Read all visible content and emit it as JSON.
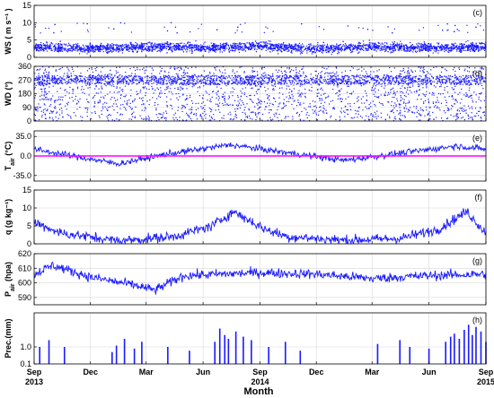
{
  "chart_data": {
    "type": "multi-panel time series",
    "time_range": [
      "2013-09",
      "2015-09"
    ],
    "xlabel": "Month",
    "x_ticks": [
      {
        "month": "Sep",
        "year": "2013",
        "date": "2013-09-01"
      },
      {
        "month": "Dec",
        "year": "",
        "date": "2013-12-01"
      },
      {
        "month": "Mar",
        "year": "",
        "date": "2014-03-01"
      },
      {
        "month": "Jun",
        "year": "",
        "date": "2014-06-01"
      },
      {
        "month": "Sep",
        "year": "2014",
        "date": "2014-09-01"
      },
      {
        "month": "Dec",
        "year": "",
        "date": "2014-12-01"
      },
      {
        "month": "Mar",
        "year": "",
        "date": "2015-03-01"
      },
      {
        "month": "Jun",
        "year": "",
        "date": "2015-06-01"
      },
      {
        "month": "Sep",
        "year": "2015",
        "date": "2015-09-01"
      }
    ],
    "series_color": "#1a1aff",
    "reference_line_color": "#ff00ff",
    "grid": true,
    "panels": [
      {
        "id": "ws",
        "panel_label": "(c)",
        "ylabel": "WS ( m s⁻¹ )",
        "style": "dots",
        "ylim": [
          0,
          15
        ],
        "yticks": [
          "0",
          "5",
          "10",
          "15"
        ],
        "sample_values": [
          {
            "date": "2013-09-01",
            "y": 3.0
          },
          {
            "date": "2013-12-01",
            "y": 2.5
          },
          {
            "date": "2014-03-01",
            "y": 3.0
          },
          {
            "date": "2014-06-01",
            "y": 2.8
          },
          {
            "date": "2014-09-01",
            "y": 3.2
          },
          {
            "date": "2014-12-01",
            "y": 2.5
          },
          {
            "date": "2015-03-01",
            "y": 3.0
          },
          {
            "date": "2015-06-01",
            "y": 2.8
          },
          {
            "date": "2015-09-01",
            "y": 3.0
          }
        ],
        "typical_range": [
          0,
          7
        ],
        "max": 10
      },
      {
        "id": "wd",
        "panel_label": "(d)",
        "ylabel": "WD (°)",
        "style": "dots",
        "ylim": [
          0,
          360
        ],
        "yticks": [
          "0",
          "90",
          "180",
          "270",
          "360"
        ],
        "dense_band": [
          240,
          300
        ],
        "typical_range": [
          0,
          360
        ]
      },
      {
        "id": "t",
        "panel_label": "(e)",
        "ylabel": "T",
        "ylabel_subscript": "air",
        "ylabel_unit": " (°C)",
        "style": "line",
        "ylim": [
          -45,
          45
        ],
        "yticks": [
          "-35.0",
          "0.0",
          "35.0"
        ],
        "reference_line": 0,
        "sample_values": [
          {
            "date": "2013-09-01",
            "y": 12
          },
          {
            "date": "2013-11-01",
            "y": 0
          },
          {
            "date": "2014-01-15",
            "y": -14
          },
          {
            "date": "2014-04-01",
            "y": 3
          },
          {
            "date": "2014-07-15",
            "y": 20
          },
          {
            "date": "2014-10-01",
            "y": 8
          },
          {
            "date": "2015-01-15",
            "y": -8
          },
          {
            "date": "2015-04-01",
            "y": 3
          },
          {
            "date": "2015-07-15",
            "y": 18
          },
          {
            "date": "2015-09-01",
            "y": 12
          }
        ],
        "noise_amplitude": 6
      },
      {
        "id": "q",
        "panel_label": "(f)",
        "ylabel": "q (g kg⁻¹)",
        "style": "line",
        "ylim": [
          0,
          15
        ],
        "yticks": [
          "0",
          "5",
          "10",
          "15"
        ],
        "sample_values": [
          {
            "date": "2013-09-01",
            "y": 6
          },
          {
            "date": "2013-10-15",
            "y": 3
          },
          {
            "date": "2014-01-15",
            "y": 0.8
          },
          {
            "date": "2014-04-15",
            "y": 2
          },
          {
            "date": "2014-06-15",
            "y": 5
          },
          {
            "date": "2014-07-20",
            "y": 9
          },
          {
            "date": "2014-09-10",
            "y": 4
          },
          {
            "date": "2014-10-15",
            "y": 2
          },
          {
            "date": "2015-01-15",
            "y": 1
          },
          {
            "date": "2015-04-15",
            "y": 1.5
          },
          {
            "date": "2015-06-15",
            "y": 4
          },
          {
            "date": "2015-08-01",
            "y": 9
          },
          {
            "date": "2015-09-01",
            "y": 3
          }
        ],
        "noise_amplitude": 1.5
      },
      {
        "id": "p",
        "panel_label": "(g)",
        "ylabel": "P",
        "ylabel_subscript": "air",
        "ylabel_unit": " (hpa)",
        "style": "line",
        "ylim": [
          585,
          620
        ],
        "yticks": [
          "590",
          "600",
          "610",
          "620"
        ],
        "sample_values": [
          {
            "date": "2013-09-01",
            "y": 606
          },
          {
            "date": "2013-10-01",
            "y": 612
          },
          {
            "date": "2013-12-01",
            "y": 604
          },
          {
            "date": "2014-02-15",
            "y": 598
          },
          {
            "date": "2014-03-15",
            "y": 595
          },
          {
            "date": "2014-05-01",
            "y": 605
          },
          {
            "date": "2014-09-01",
            "y": 607
          },
          {
            "date": "2014-12-01",
            "y": 606
          },
          {
            "date": "2015-03-01",
            "y": 603
          },
          {
            "date": "2015-06-01",
            "y": 605
          },
          {
            "date": "2015-09-01",
            "y": 606
          }
        ],
        "noise_amplitude": 3.5
      },
      {
        "id": "prec",
        "panel_label": "(h)",
        "ylabel": "Prec.(mm)",
        "style": "bars",
        "scale": "log",
        "ylim": [
          0.1,
          100
        ],
        "yticks": [
          "0.1",
          "1.0"
        ],
        "bars": [
          {
            "date": "2013-09-10",
            "y": 1.0
          },
          {
            "date": "2013-09-25",
            "y": 2.5
          },
          {
            "date": "2013-10-20",
            "y": 1.0
          },
          {
            "date": "2014-01-05",
            "y": 0.5
          },
          {
            "date": "2014-01-12",
            "y": 1.2
          },
          {
            "date": "2014-01-25",
            "y": 3.0
          },
          {
            "date": "2014-02-10",
            "y": 0.8
          },
          {
            "date": "2014-02-22",
            "y": 2.0
          },
          {
            "date": "2014-04-05",
            "y": 1.0
          },
          {
            "date": "2014-05-10",
            "y": 0.6
          },
          {
            "date": "2014-06-20",
            "y": 2.0
          },
          {
            "date": "2014-06-28",
            "y": 12
          },
          {
            "date": "2014-07-06",
            "y": 5.0
          },
          {
            "date": "2014-07-12",
            "y": 3.0
          },
          {
            "date": "2014-07-24",
            "y": 8.0
          },
          {
            "date": "2014-08-05",
            "y": 4.0
          },
          {
            "date": "2014-08-18",
            "y": 2.5
          },
          {
            "date": "2014-09-15",
            "y": 1.0
          },
          {
            "date": "2014-10-12",
            "y": 2.0
          },
          {
            "date": "2014-11-05",
            "y": 0.6
          },
          {
            "date": "2015-03-10",
            "y": 1.5
          },
          {
            "date": "2015-04-15",
            "y": 2.5
          },
          {
            "date": "2015-05-01",
            "y": 1.0
          },
          {
            "date": "2015-06-01",
            "y": 0.8
          },
          {
            "date": "2015-06-28",
            "y": 2.0
          },
          {
            "date": "2015-07-06",
            "y": 4.0
          },
          {
            "date": "2015-07-12",
            "y": 6.0
          },
          {
            "date": "2015-07-20",
            "y": 3.0
          },
          {
            "date": "2015-07-28",
            "y": 10
          },
          {
            "date": "2015-08-04",
            "y": 20
          },
          {
            "date": "2015-08-10",
            "y": 5.0
          },
          {
            "date": "2015-08-16",
            "y": 15
          },
          {
            "date": "2015-08-24",
            "y": 8.0
          },
          {
            "date": "2015-09-01",
            "y": 2.0
          }
        ]
      }
    ]
  }
}
